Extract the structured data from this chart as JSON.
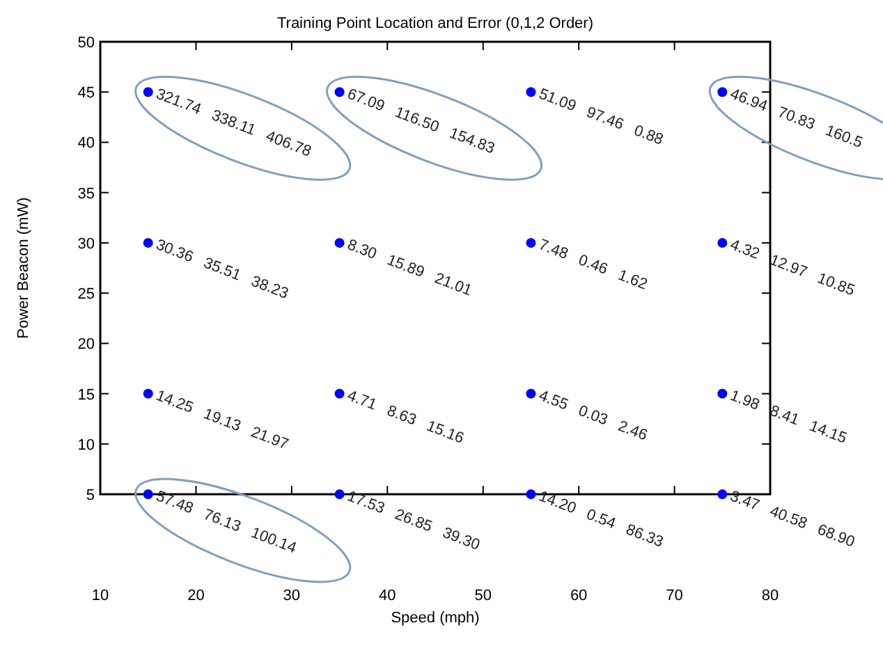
{
  "chart_data": {
    "type": "scatter",
    "title": "Training Point Location and Error (0,1,2 Order)",
    "xlabel": "Speed (mph)",
    "ylabel": "Power Beacon (mW)",
    "xlim": [
      10,
      80
    ],
    "ylim": [
      5,
      50
    ],
    "xticks": [
      10,
      20,
      30,
      40,
      50,
      60,
      70,
      80
    ],
    "yticks": [
      5,
      10,
      15,
      20,
      25,
      30,
      35,
      40,
      45,
      50
    ],
    "grid": false,
    "marker": "circle",
    "series": [
      {
        "color": "#0000ff",
        "x": [
          15,
          35,
          55,
          75,
          15,
          35,
          55,
          75,
          15,
          35,
          55,
          75,
          15,
          35,
          55,
          75
        ],
        "values": [
          45,
          45,
          45,
          45,
          30,
          30,
          30,
          30,
          15,
          15,
          15,
          15,
          5,
          5,
          5,
          5
        ]
      }
    ],
    "annotations": [
      {
        "text": "321.74 338.11 406.78",
        "x": 15,
        "y": 45
      },
      {
        "text": "67.09 116.50 154.83",
        "x": 35,
        "y": 45
      },
      {
        "text": "51.09 97.46 0.88",
        "x": 55,
        "y": 45
      },
      {
        "text": "46.94 70.83 160.5",
        "x": 75,
        "y": 45
      },
      {
        "text": "30.36 35.51 38.23",
        "x": 15,
        "y": 30
      },
      {
        "text": "8.30 15.89 21.01",
        "x": 35,
        "y": 30
      },
      {
        "text": "7.48 0.46 1.62",
        "x": 55,
        "y": 30
      },
      {
        "text": "4.32 12.97 10.85",
        "x": 75,
        "y": 30
      },
      {
        "text": "14.25 19.13 21.97",
        "x": 15,
        "y": 15
      },
      {
        "text": "4.71 8.63 15.16",
        "x": 35,
        "y": 15
      },
      {
        "text": "4.55 0.03 2.46",
        "x": 55,
        "y": 15
      },
      {
        "text": "1.98 8.41 14.15",
        "x": 75,
        "y": 15
      },
      {
        "text": "57.48 76.13 100.14",
        "x": 15,
        "y": 5
      },
      {
        "text": "17.53 26.85 39.30",
        "x": 35,
        "y": 5
      },
      {
        "text": "14.20 0.54 86.33",
        "x": 55,
        "y": 5
      },
      {
        "text": "3.47 40.58 68.90",
        "x": 75,
        "y": 5
      }
    ]
  }
}
